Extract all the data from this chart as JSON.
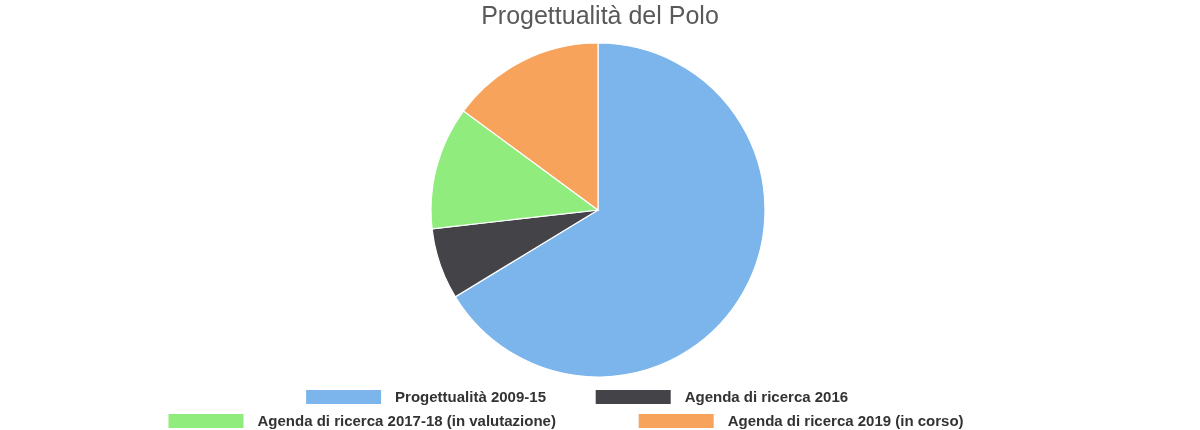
{
  "chart_data": {
    "type": "pie",
    "title": "Progettualità del Polo",
    "categories": [
      "Progettualità 2009-15",
      "Agenda di ricerca 2016",
      "Agenda di ricerca 2017-18 (in valutazione)",
      "Agenda di ricerca 2019 (in corso)"
    ],
    "values": [
      66.3,
      6.9,
      11.9,
      14.9
    ],
    "colors": [
      "#7cb5ec",
      "#434348",
      "#90ed7d",
      "#f7a35c"
    ],
    "legend": "bottom"
  }
}
